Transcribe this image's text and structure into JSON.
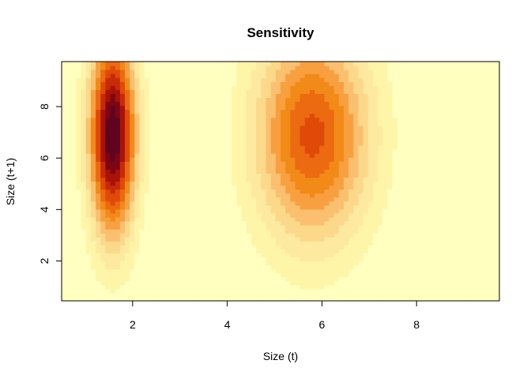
{
  "chart_data": {
    "type": "heatmap",
    "title": "Sensitivity",
    "xlabel": "Size (t)",
    "ylabel": "Size (t+1)",
    "xlim": [
      0.5,
      9.75
    ],
    "ylim": [
      0.45,
      9.75
    ],
    "x_ticks": [
      2,
      4,
      6,
      8
    ],
    "y_ticks": [
      2,
      4,
      6,
      8
    ],
    "x_tick_labels": [
      "2",
      "4",
      "6",
      "8"
    ],
    "y_tick_labels": [
      "2",
      "4",
      "6",
      "8"
    ],
    "grid": false,
    "legend": "none",
    "colormap": "heat.colors (reversed)",
    "palette": [
      "#FFFFC0",
      "#FFF5A8",
      "#FDE9A0",
      "#FCD98A",
      "#FAC070",
      "#F8A040",
      "#F28A18",
      "#EC6A10",
      "#E04A08",
      "#C82A08",
      "#A81208",
      "#7E0614",
      "#5E0420"
    ],
    "value_range": [
      0,
      1
    ],
    "hotspots": [
      {
        "x_center": 1.58,
        "y_center": 6.9,
        "x_spread": 0.34,
        "y_spread": 2.7,
        "peak": 1.0
      },
      {
        "x_center": 5.8,
        "y_center": 6.9,
        "x_spread": 0.85,
        "y_spread": 2.9,
        "peak": 0.64
      }
    ]
  }
}
